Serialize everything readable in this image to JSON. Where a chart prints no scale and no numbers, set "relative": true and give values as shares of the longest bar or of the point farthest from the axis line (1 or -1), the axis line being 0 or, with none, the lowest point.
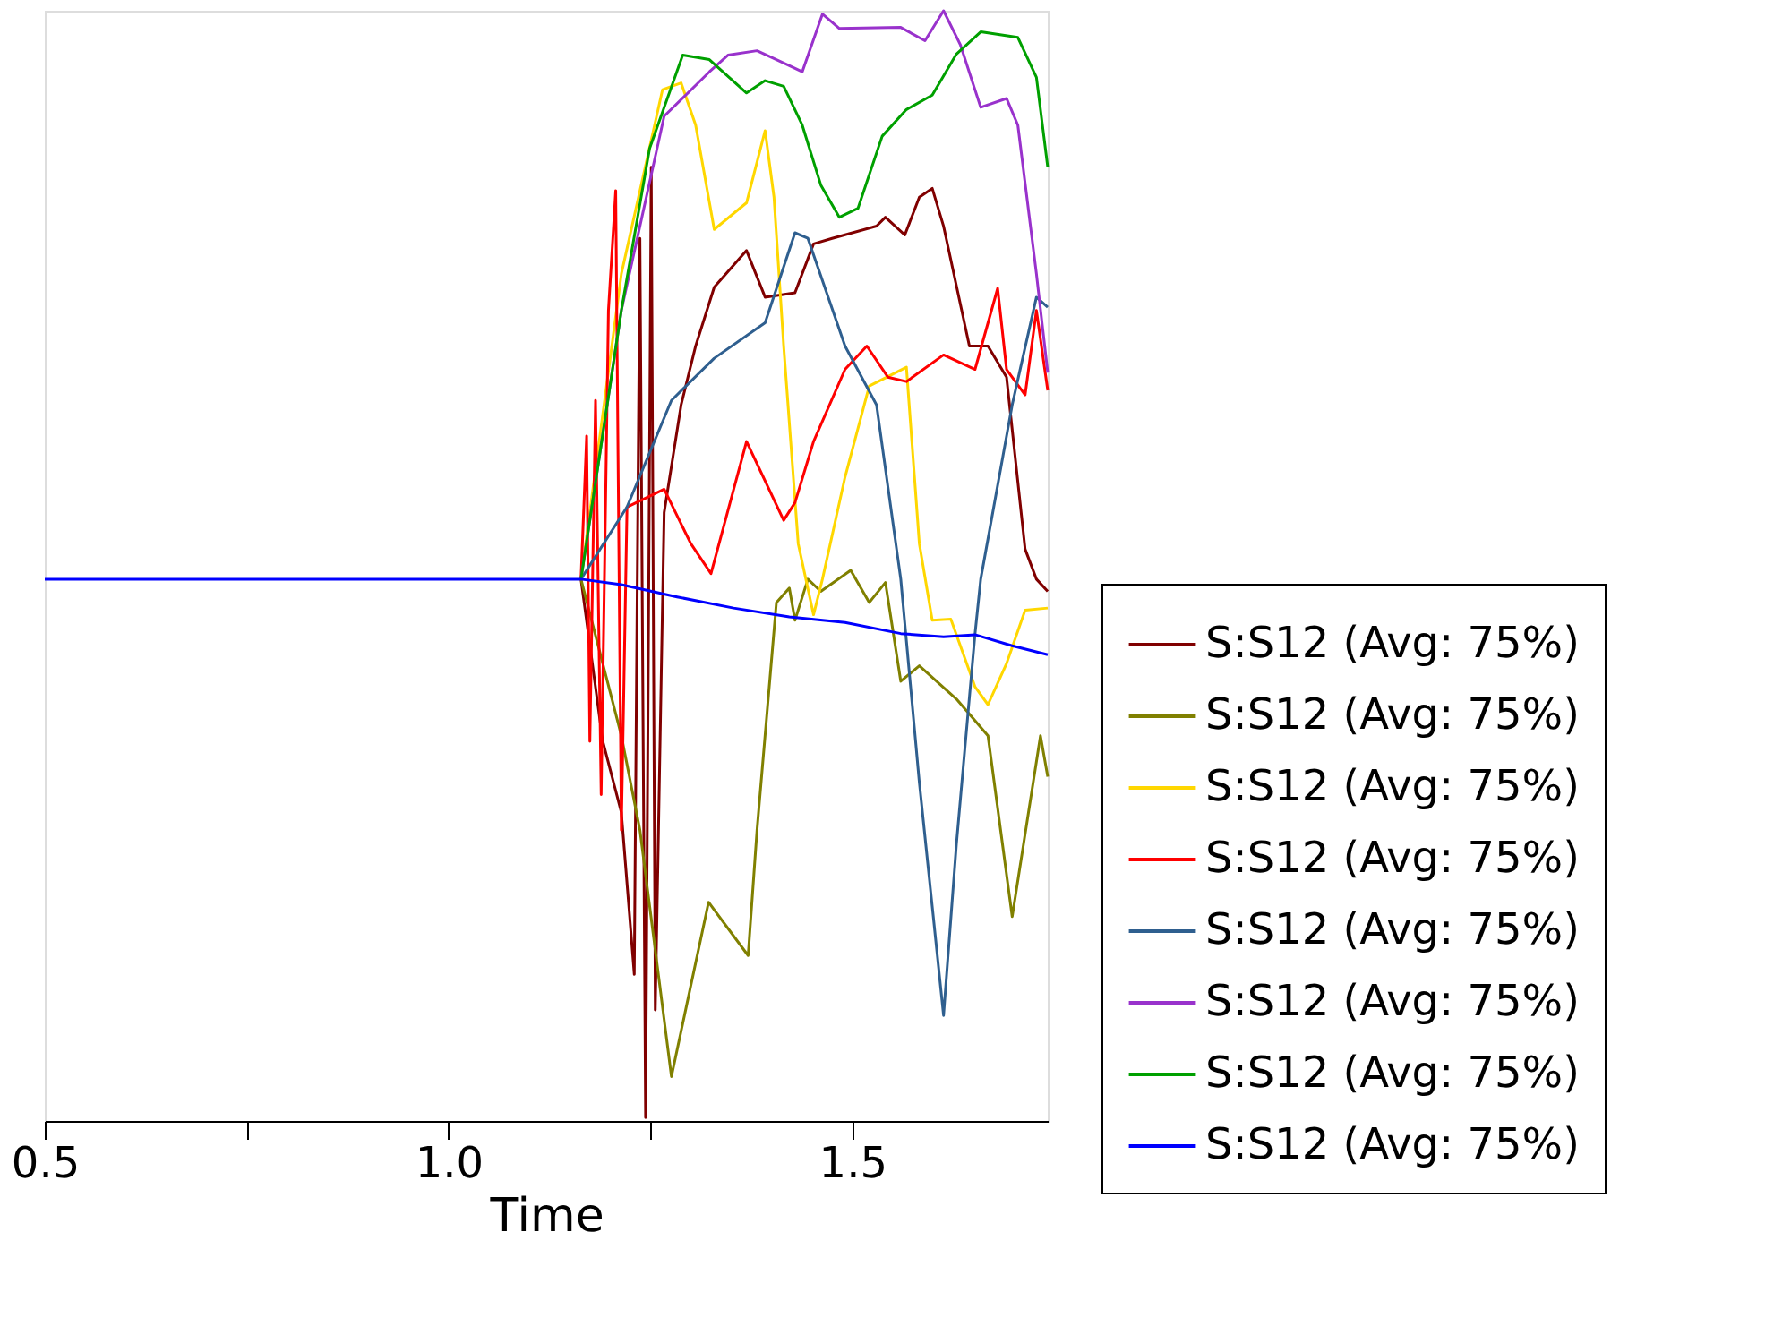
{
  "chart_data": {
    "type": "line",
    "xlabel": "Time",
    "relative": true,
    "legend": "bottom right",
    "grid": false,
    "xlim": [
      0.5,
      1.742
    ],
    "xticks": [
      0.5,
      {
        "value": 0.75,
        "label": null
      },
      {
        "value": 1.0,
        "label": "1.0"
      },
      {
        "value": 1.25,
        "label": null
      },
      1.5
    ],
    "series": [
      {
        "name": "S:S12 (Avg: 75%)",
        "color": "#800000",
        "x": [
          1.164,
          1.191,
          1.214,
          1.23,
          1.237,
          1.244,
          1.251,
          1.256,
          1.267,
          1.288,
          1.306,
          1.329,
          1.369,
          1.392,
          1.429,
          1.452,
          1.475,
          1.53,
          1.541,
          1.565,
          1.583,
          1.599,
          1.613,
          1.645,
          1.668,
          1.691,
          1.714,
          1.728,
          1.742
        ],
        "values": [
          0.488,
          0.342,
          0.278,
          0.132,
          0.795,
          0.003,
          0.859,
          0.1,
          0.548,
          0.645,
          0.698,
          0.751,
          0.784,
          0.742,
          0.746,
          0.79,
          0.795,
          0.806,
          0.814,
          0.798,
          0.832,
          0.84,
          0.806,
          0.698,
          0.698,
          0.67,
          0.515,
          0.488,
          0.477
        ]
      },
      {
        "name": "S:S12 (Avg: 75%)",
        "color": "#808000",
        "x": [
          1.164,
          1.191,
          1.214,
          1.237,
          1.276,
          1.322,
          1.371,
          1.382,
          1.406,
          1.422,
          1.429,
          1.445,
          1.461,
          1.498,
          1.521,
          1.541,
          1.56,
          1.583,
          1.629,
          1.668,
          1.698,
          1.733,
          1.742
        ],
        "values": [
          0.488,
          0.412,
          0.347,
          0.262,
          0.04,
          0.197,
          0.149,
          0.262,
          0.467,
          0.48,
          0.451,
          0.488,
          0.477,
          0.496,
          0.467,
          0.485,
          0.396,
          0.41,
          0.38,
          0.347,
          0.184,
          0.347,
          0.31
        ]
      },
      {
        "name": "S:S12 (Avg: 75%)",
        "color": "#ffd700",
        "x": [
          1.164,
          1.214,
          1.265,
          1.288,
          1.306,
          1.329,
          1.369,
          1.392,
          1.403,
          1.415,
          1.433,
          1.452,
          1.463,
          1.491,
          1.521,
          1.567,
          1.583,
          1.599,
          1.622,
          1.652,
          1.668,
          1.691,
          1.714,
          1.742
        ],
        "values": [
          0.488,
          0.763,
          0.929,
          0.935,
          0.897,
          0.803,
          0.827,
          0.892,
          0.832,
          0.698,
          0.52,
          0.456,
          0.488,
          0.58,
          0.662,
          0.679,
          0.52,
          0.451,
          0.452,
          0.391,
          0.375,
          0.412,
          0.46,
          0.462
        ]
      },
      {
        "name": "S:S12 (Avg: 75%)",
        "color": "#ff0000",
        "x": [
          1.164,
          1.171,
          1.175,
          1.182,
          1.189,
          1.198,
          1.207,
          1.214,
          1.221,
          1.267,
          1.3,
          1.325,
          1.369,
          1.415,
          1.429,
          1.452,
          1.491,
          1.518,
          1.544,
          1.567,
          1.613,
          1.652,
          1.68,
          1.691,
          1.714,
          1.728,
          1.742
        ],
        "values": [
          0.488,
          0.617,
          0.342,
          0.649,
          0.294,
          0.73,
          0.838,
          0.262,
          0.553,
          0.569,
          0.52,
          0.493,
          0.612,
          0.541,
          0.557,
          0.612,
          0.677,
          0.698,
          0.67,
          0.666,
          0.69,
          0.677,
          0.75,
          0.677,
          0.654,
          0.73,
          0.658
        ]
      },
      {
        "name": "S:S12 (Avg: 75%)",
        "color": "#2f5f8f",
        "x": [
          1.164,
          1.221,
          1.276,
          1.329,
          1.392,
          1.429,
          1.445,
          1.491,
          1.53,
          1.56,
          1.583,
          1.613,
          1.629,
          1.652,
          1.659,
          1.698,
          1.728,
          1.742
        ],
        "values": [
          0.488,
          0.553,
          0.649,
          0.687,
          0.719,
          0.8,
          0.795,
          0.698,
          0.645,
          0.488,
          0.305,
          0.095,
          0.25,
          0.439,
          0.488,
          0.645,
          0.742,
          0.733
        ]
      },
      {
        "name": "S:S12 (Avg: 75%)",
        "color": "#9932cc",
        "x": [
          1.164,
          1.214,
          1.267,
          1.323,
          1.346,
          1.382,
          1.415,
          1.438,
          1.463,
          1.484,
          1.56,
          1.59,
          1.613,
          1.634,
          1.659,
          1.691,
          1.705,
          1.728,
          1.742
        ],
        "values": [
          0.488,
          0.73,
          0.905,
          0.945,
          0.96,
          0.964,
          0.953,
          0.945,
          0.997,
          0.984,
          0.985,
          0.973,
          1.0,
          0.969,
          0.913,
          0.921,
          0.897,
          0.763,
          0.674
        ]
      },
      {
        "name": "S:S12 (Avg: 75%)",
        "color": "#00a000",
        "x": [
          1.164,
          1.214,
          1.249,
          1.29,
          1.323,
          1.369,
          1.392,
          1.415,
          1.438,
          1.461,
          1.484,
          1.507,
          1.537,
          1.567,
          1.599,
          1.629,
          1.659,
          1.705,
          1.728,
          1.742
        ],
        "values": [
          0.488,
          0.73,
          0.876,
          0.96,
          0.956,
          0.926,
          0.937,
          0.932,
          0.897,
          0.843,
          0.814,
          0.822,
          0.887,
          0.911,
          0.924,
          0.961,
          0.981,
          0.976,
          0.94,
          0.859
        ]
      },
      {
        "name": "S:S12 (Avg: 75%)",
        "color": "#0000ff",
        "x": [
          0.5,
          1.164,
          1.214,
          1.283,
          1.353,
          1.422,
          1.491,
          1.56,
          1.613,
          1.652,
          1.698,
          1.742
        ],
        "values": [
          0.488,
          0.488,
          0.483,
          0.472,
          0.462,
          0.454,
          0.449,
          0.439,
          0.436,
          0.438,
          0.428,
          0.42
        ]
      }
    ]
  }
}
